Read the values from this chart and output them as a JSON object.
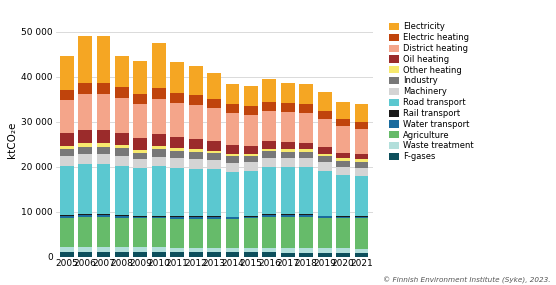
{
  "years": [
    2005,
    2006,
    2007,
    2008,
    2009,
    2010,
    2011,
    2012,
    2013,
    2014,
    2015,
    2016,
    2017,
    2018,
    2019,
    2020,
    2021
  ],
  "sectors": [
    "F-gases",
    "Waste treatment",
    "Agriculture",
    "Water transport",
    "Rail transport",
    "Road transport",
    "Machinery",
    "Industry",
    "Other heating",
    "Oil heating",
    "District heating",
    "Electric heating",
    "Electricity"
  ],
  "colors": [
    "#0d4f5c",
    "#b2dfdb",
    "#66bb6a",
    "#1a6b9e",
    "#1a1a1a",
    "#5bc8d0",
    "#d4d4d4",
    "#787878",
    "#f7e96e",
    "#9b2b2b",
    "#f4a58a",
    "#c0440c",
    "#f5a623"
  ],
  "data": {
    "F-gases": [
      900,
      950,
      950,
      950,
      950,
      950,
      900,
      900,
      900,
      900,
      900,
      900,
      850,
      850,
      850,
      800,
      750
    ],
    "Waste treatment": [
      1200,
      1200,
      1200,
      1200,
      1100,
      1100,
      1100,
      1100,
      1100,
      1100,
      1100,
      1000,
      1000,
      1000,
      1000,
      1000,
      1000
    ],
    "Agriculture": [
      6500,
      6600,
      6600,
      6500,
      6500,
      6500,
      6400,
      6400,
      6400,
      6400,
      6500,
      7000,
      7000,
      7000,
      6800,
      6800,
      6800
    ],
    "Water transport": [
      400,
      400,
      400,
      350,
      350,
      350,
      350,
      350,
      350,
      350,
      350,
      350,
      350,
      350,
      300,
      300,
      300
    ],
    "Rail transport": [
      200,
      200,
      200,
      200,
      200,
      200,
      200,
      200,
      200,
      150,
      150,
      150,
      150,
      150,
      150,
      150,
      150
    ],
    "Road transport": [
      11000,
      11200,
      11200,
      11000,
      10500,
      11000,
      10800,
      10600,
      10500,
      10000,
      10000,
      10500,
      10500,
      10500,
      10000,
      9000,
      9000
    ],
    "Machinery": [
      2200,
      2200,
      2200,
      2200,
      2000,
      2100,
      2100,
      2100,
      2000,
      2000,
      2000,
      2000,
      2000,
      2000,
      1900,
      1900,
      1800
    ],
    "Industry": [
      1600,
      1700,
      1700,
      1700,
      1500,
      1700,
      1600,
      1600,
      1500,
      1400,
      1300,
      1500,
      1500,
      1500,
      1400,
      1400,
      1300
    ],
    "Other heating": [
      600,
      700,
      700,
      600,
      700,
      700,
      600,
      600,
      600,
      600,
      500,
      500,
      500,
      500,
      500,
      500,
      500
    ],
    "Oil heating": [
      2800,
      3000,
      3000,
      2800,
      2600,
      2700,
      2600,
      2400,
      2200,
      2000,
      1800,
      1700,
      1600,
      1500,
      1400,
      1200,
      1100
    ],
    "District heating": [
      7500,
      8000,
      8000,
      7800,
      7500,
      7800,
      7500,
      7500,
      7200,
      7000,
      6800,
      6800,
      6700,
      6600,
      6300,
      5900,
      5700
    ],
    "Electric heating": [
      2200,
      2400,
      2400,
      2400,
      2200,
      2400,
      2200,
      2200,
      2100,
      2000,
      2000,
      1900,
      1900,
      1900,
      1800,
      1700,
      1600
    ],
    "Electricity": [
      7500,
      10500,
      10500,
      7000,
      7500,
      10000,
      7000,
      6500,
      5800,
      4500,
      4500,
      5200,
      4500,
      4500,
      4300,
      3800,
      4000
    ]
  },
  "ylabel": "ktCO₂e",
  "ylim": [
    0,
    52000
  ],
  "yticks": [
    0,
    10000,
    20000,
    30000,
    40000,
    50000
  ],
  "ytick_labels": [
    "0",
    "10 000",
    "20 000",
    "30 000",
    "40 000",
    "50 000"
  ],
  "legend_sectors": [
    "Electricity",
    "Electric heating",
    "District heating",
    "Oil heating",
    "Other heating",
    "Industry",
    "Machinery",
    "Road transport",
    "Rail transport",
    "Water transport",
    "Agriculture",
    "Waste treatment",
    "F-gases"
  ],
  "legend_colors": [
    "#f5a623",
    "#c0440c",
    "#f4a58a",
    "#9b2b2b",
    "#f7e96e",
    "#787878",
    "#d4d4d4",
    "#5bc8d0",
    "#1a1a1a",
    "#1a6b9e",
    "#66bb6a",
    "#b2dfdb",
    "#0d4f5c"
  ],
  "background_color": "#ffffff",
  "copyright_text": "© Finnish Environment Institute (Syke), 2023.",
  "bar_width": 0.75,
  "grid_color": "#cccccc"
}
